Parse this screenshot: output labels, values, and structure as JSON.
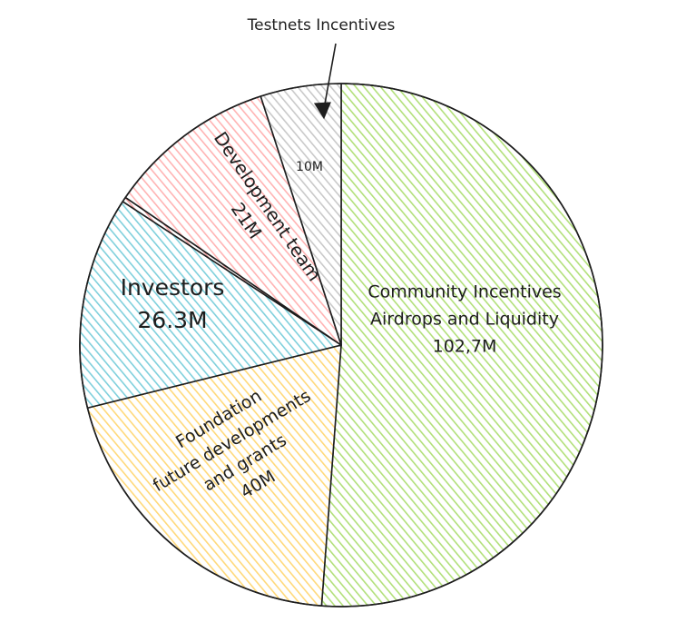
{
  "chart_data": {
    "type": "pie",
    "slices": [
      {
        "key": "community",
        "lines": [
          "Community Incentives",
          "Airdrops and Liquidity",
          "102,7M"
        ],
        "value": 102.7,
        "color": "#b2e07a"
      },
      {
        "key": "foundation",
        "lines": [
          "Foundation",
          "future developments",
          "and grants",
          "40M"
        ],
        "value": 40,
        "color": "#ffd97a"
      },
      {
        "key": "investors",
        "lines": [
          "Investors",
          "26.3M"
        ],
        "value": 26.3,
        "color": "#7fd0dc"
      },
      {
        "key": "separator",
        "lines": [],
        "value": 0.6,
        "color": "#f4a3a3"
      },
      {
        "key": "development",
        "lines": [
          "Development team",
          "21M"
        ],
        "value": 21,
        "color": "#ffb3b3"
      },
      {
        "key": "testnets",
        "lines": [
          "10M"
        ],
        "value": 10,
        "color": "#c9c9c9"
      }
    ],
    "annotation": "Testnets Incentives"
  }
}
